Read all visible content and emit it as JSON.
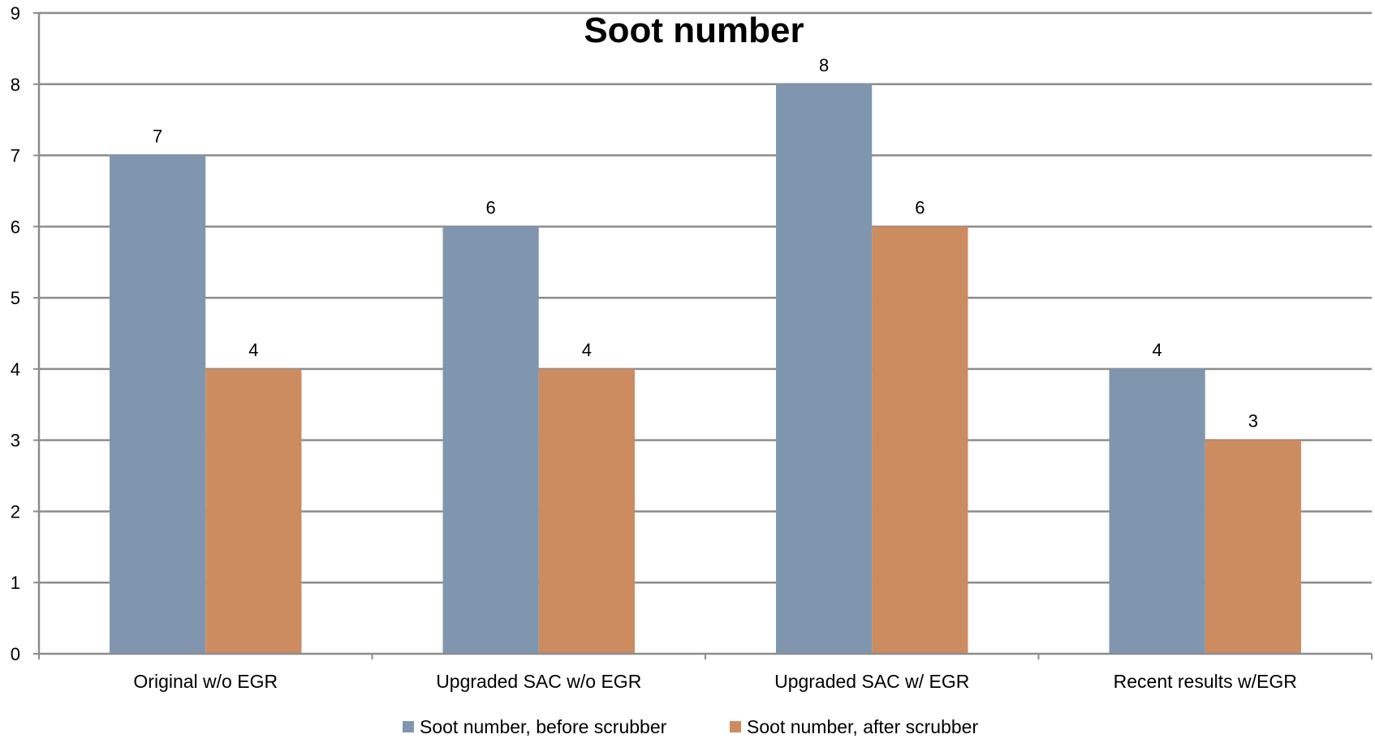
{
  "chart_data": {
    "type": "bar",
    "title": "Soot number",
    "xlabel": "",
    "ylabel": "",
    "ylim": [
      0,
      9
    ],
    "yticks": [
      "0",
      "1",
      "2",
      "3",
      "4",
      "5",
      "6",
      "7",
      "8",
      "9"
    ],
    "categories": [
      "Original w/o EGR",
      "Upgraded SAC w/o EGR",
      "Upgraded SAC w/ EGR",
      "Recent results w/EGR"
    ],
    "series": [
      {
        "name": "Soot number, before scrubber",
        "values": [
          7,
          6,
          8,
          4
        ],
        "color": "#8096ae"
      },
      {
        "name": "Soot number, after scrubber",
        "values": [
          4,
          4,
          6,
          3
        ],
        "color": "#cc8c5f"
      }
    ],
    "grid": true,
    "legend_position": "bottom"
  }
}
